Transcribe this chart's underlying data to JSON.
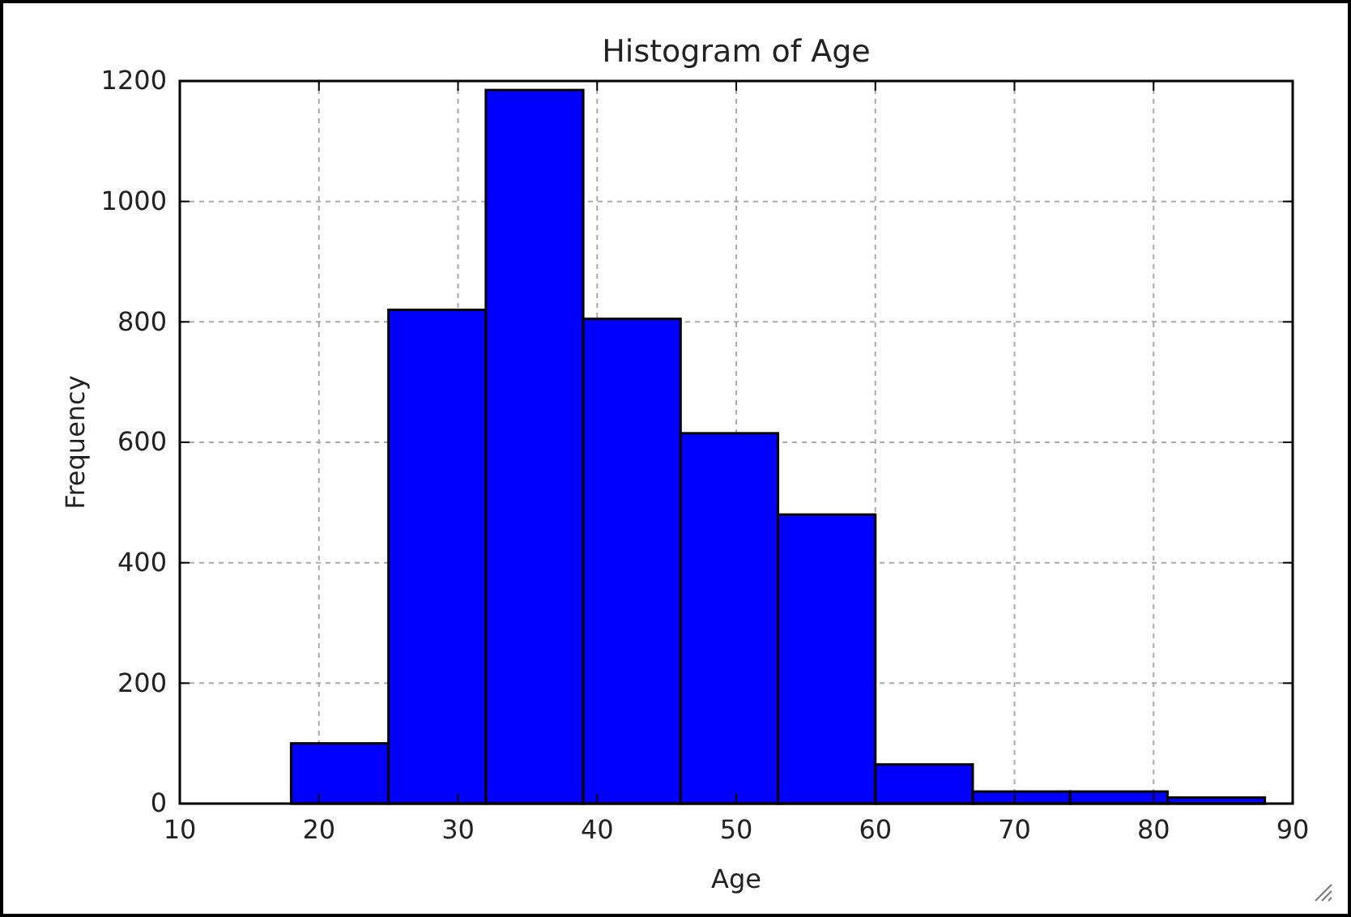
{
  "chart_data": {
    "type": "histogram",
    "title": "Histogram of Age",
    "xlabel": "Age",
    "ylabel": "Frequency",
    "bins": [
      18,
      25,
      32,
      39,
      46,
      53,
      60,
      67,
      74,
      81,
      88
    ],
    "values": [
      100,
      820,
      1185,
      805,
      615,
      480,
      65,
      20,
      20,
      10
    ],
    "color": "#0000ff",
    "xlim": [
      10,
      90
    ],
    "xticks": [
      10,
      20,
      30,
      40,
      50,
      60,
      70,
      80,
      90
    ],
    "ylim": [
      0,
      1200
    ],
    "yticks": [
      0,
      200,
      400,
      600,
      800,
      1000,
      1200
    ],
    "grid": true
  }
}
